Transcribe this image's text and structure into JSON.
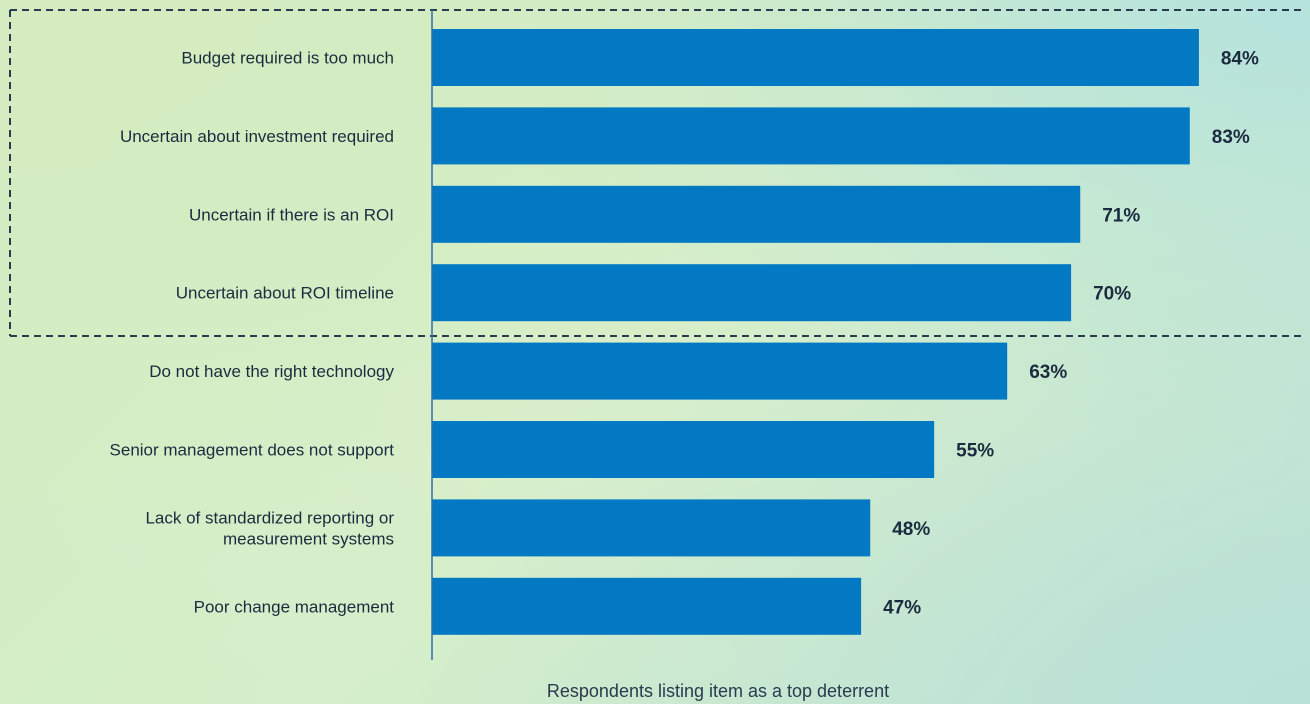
{
  "chart_data": {
    "type": "bar",
    "orientation": "horizontal",
    "categories": [
      [
        "Budget required is too much"
      ],
      [
        "Uncertain about investment required"
      ],
      [
        "Uncertain if there is an ROI"
      ],
      [
        "Uncertain about ROI timeline"
      ],
      [
        "Do not have the right technology"
      ],
      [
        "Senior management does not support"
      ],
      [
        "Lack of standardized reporting or",
        "measurement systems"
      ],
      [
        "Poor change management"
      ]
    ],
    "values": [
      84,
      83,
      71,
      70,
      63,
      55,
      48,
      47
    ],
    "value_labels": [
      "84%",
      "83%",
      "71%",
      "70%",
      "63%",
      "55%",
      "48%",
      "47%"
    ],
    "xlabel": "Respondents listing item as a top deterrent",
    "xlim": [
      0,
      100
    ],
    "highlighted_categories": [
      0,
      1,
      2,
      3
    ],
    "bar_color": "#0378c3",
    "text_color": "#1c2b3f",
    "highlight_box_color": "#2a3a4f"
  }
}
